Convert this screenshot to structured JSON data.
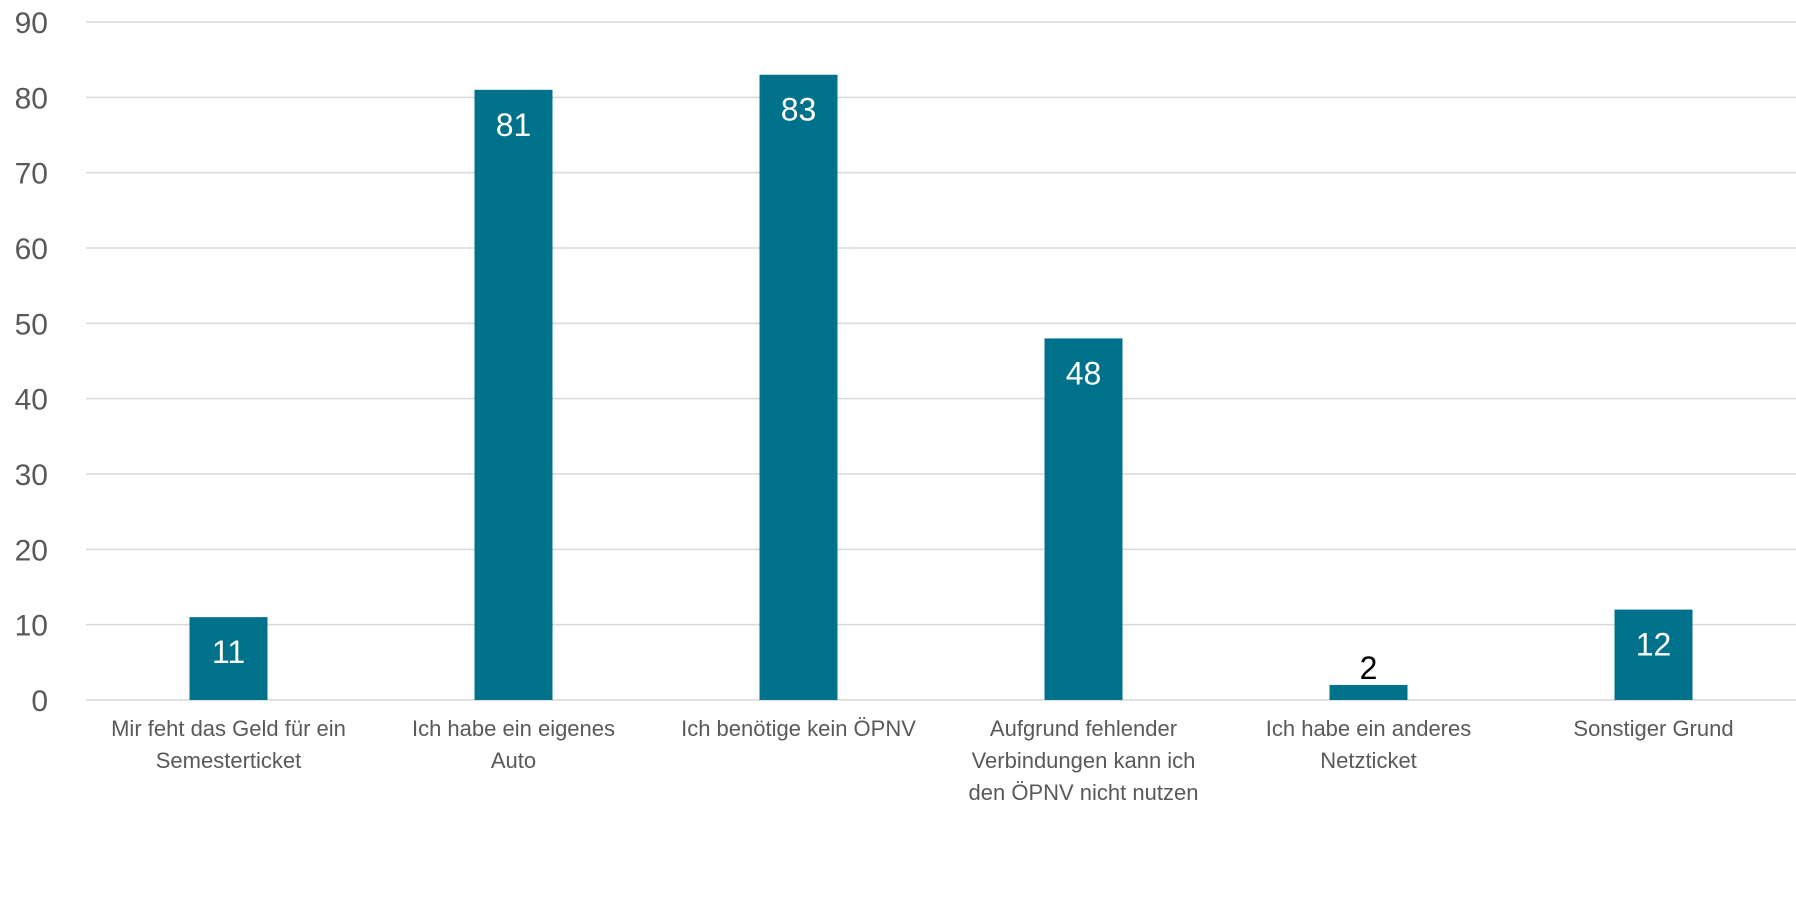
{
  "chart_data": {
    "type": "bar",
    "title": "",
    "xlabel": "",
    "ylabel": "",
    "ylim": [
      0,
      90
    ],
    "yticks": [
      0,
      10,
      20,
      30,
      40,
      50,
      60,
      70,
      80,
      90
    ],
    "grid": true,
    "categories": [
      [
        "Mir feht das Geld für ein",
        "Semesterticket"
      ],
      [
        "Ich habe ein eigenes",
        "Auto"
      ],
      [
        "Ich benötige kein ÖPNV"
      ],
      [
        "Aufgrund fehlender",
        "Verbindungen kann ich",
        "den ÖPNV nicht nutzen"
      ],
      [
        "Ich habe ein anderes",
        "Netzticket"
      ],
      [
        "Sonstiger Grund"
      ]
    ],
    "values": [
      11,
      81,
      83,
      48,
      2,
      12
    ],
    "data_labels": [
      "11",
      "81",
      "83",
      "48",
      "2",
      "12"
    ],
    "bar_color": "#00718a",
    "label_color_inside": "#ffffff",
    "label_color_outside": "#000000"
  }
}
